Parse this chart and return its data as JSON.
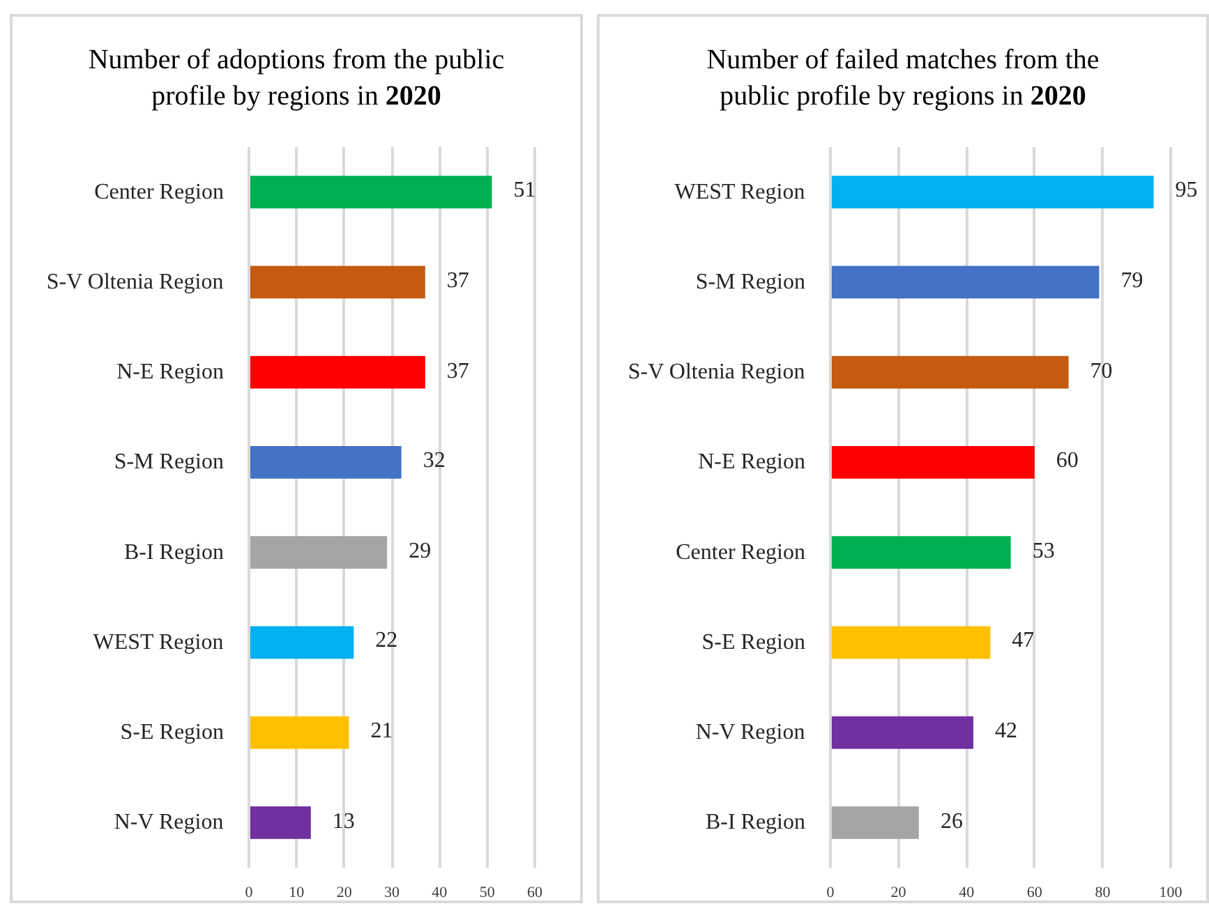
{
  "chart_data": [
    {
      "type": "bar",
      "orientation": "horizontal",
      "title": "Number of adoptions from the public profile by regions in 2020",
      "categories": [
        "Center Region",
        "S-V Oltenia Region",
        "N-E Region",
        "S-M Region",
        "B-I Region",
        "WEST Region",
        "S-E Region",
        "N-V Region"
      ],
      "values": [
        51,
        37,
        37,
        32,
        29,
        22,
        21,
        13
      ],
      "colors": [
        "#00b050",
        "#c55a11",
        "#ff0000",
        "#4472c4",
        "#a5a5a5",
        "#00b0f0",
        "#ffc000",
        "#7030a0"
      ],
      "xlim": [
        0,
        60
      ],
      "xticks": [
        0,
        10,
        20,
        30,
        40,
        50,
        60
      ],
      "grid": "x",
      "data_labels": true
    },
    {
      "type": "bar",
      "orientation": "horizontal",
      "title": "Number of failed matches from the public profile by regions in 2020",
      "categories": [
        "WEST Region",
        "S-M Region",
        "S-V Oltenia Region",
        "N-E Region",
        "Center Region",
        "S-E Region",
        "N-V Region",
        "B-I Region"
      ],
      "values": [
        95,
        79,
        70,
        60,
        53,
        47,
        42,
        26
      ],
      "colors": [
        "#00b0f0",
        "#4472c4",
        "#c55a11",
        "#ff0000",
        "#00b050",
        "#ffc000",
        "#7030a0",
        "#a5a5a5"
      ],
      "xlim": [
        0,
        100
      ],
      "xticks": [
        0,
        20,
        40,
        60,
        80,
        100
      ],
      "grid": "x",
      "data_labels": true
    }
  ]
}
